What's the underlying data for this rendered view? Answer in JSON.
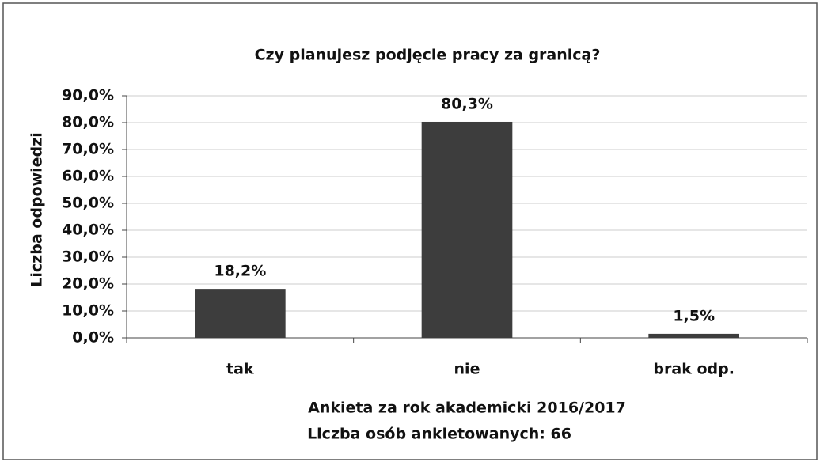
{
  "chart_data": {
    "type": "bar",
    "title": "Czy planujesz podjęcie pracy za granicą?",
    "ylabel": "Liczba odpowiedzi",
    "xlabel": "Ankieta za rok akademicki 2016/2017",
    "annotations": [
      "Liczba osób ankietowanych: 66"
    ],
    "categories": [
      "tak",
      "nie",
      "brak odp."
    ],
    "values": [
      18.2,
      80.3,
      1.5
    ],
    "value_labels": [
      "18,2%",
      "80,3%",
      "1,5%"
    ],
    "color": "#3d3d3d",
    "ylim": [
      0,
      90
    ],
    "yticks": [
      {
        "value": 0,
        "label": "0,0%"
      },
      {
        "value": 10,
        "label": "10,0%"
      },
      {
        "value": 20,
        "label": "20,0%"
      },
      {
        "value": 30,
        "label": "30,0%"
      },
      {
        "value": 40,
        "label": "40,0%"
      },
      {
        "value": 50,
        "label": "50,0%"
      },
      {
        "value": 60,
        "label": "60,0%"
      },
      {
        "value": 70,
        "label": "70,0%"
      },
      {
        "value": 80,
        "label": "80,0%"
      },
      {
        "value": 90,
        "label": "90,0%"
      }
    ],
    "grid": true
  }
}
